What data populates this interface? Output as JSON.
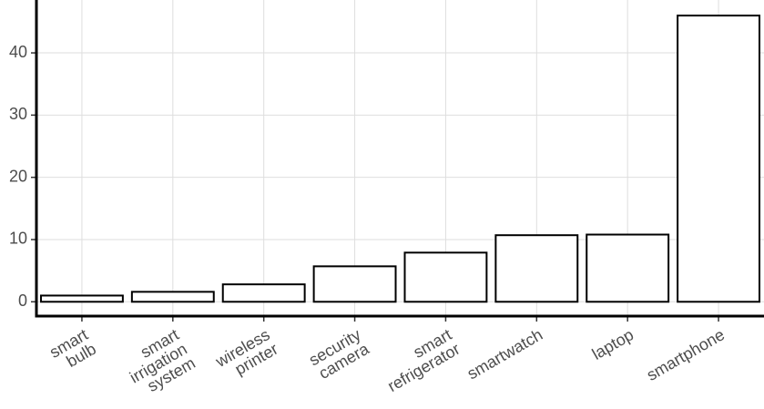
{
  "chart_data": {
    "type": "bar",
    "categories": [
      "smart bulb",
      "smart irrigation system",
      "wireless printer",
      "security camera",
      "smart refrigerator",
      "smartwatch",
      "laptop",
      "smartphone"
    ],
    "values": [
      1.0,
      1.6,
      2.8,
      5.7,
      7.9,
      10.7,
      10.8,
      46.0
    ],
    "color": "#ffffff",
    "ylim": [
      -2.3,
      48.5
    ],
    "yticks": [
      0,
      10,
      20,
      30,
      40
    ],
    "grid": true
  }
}
